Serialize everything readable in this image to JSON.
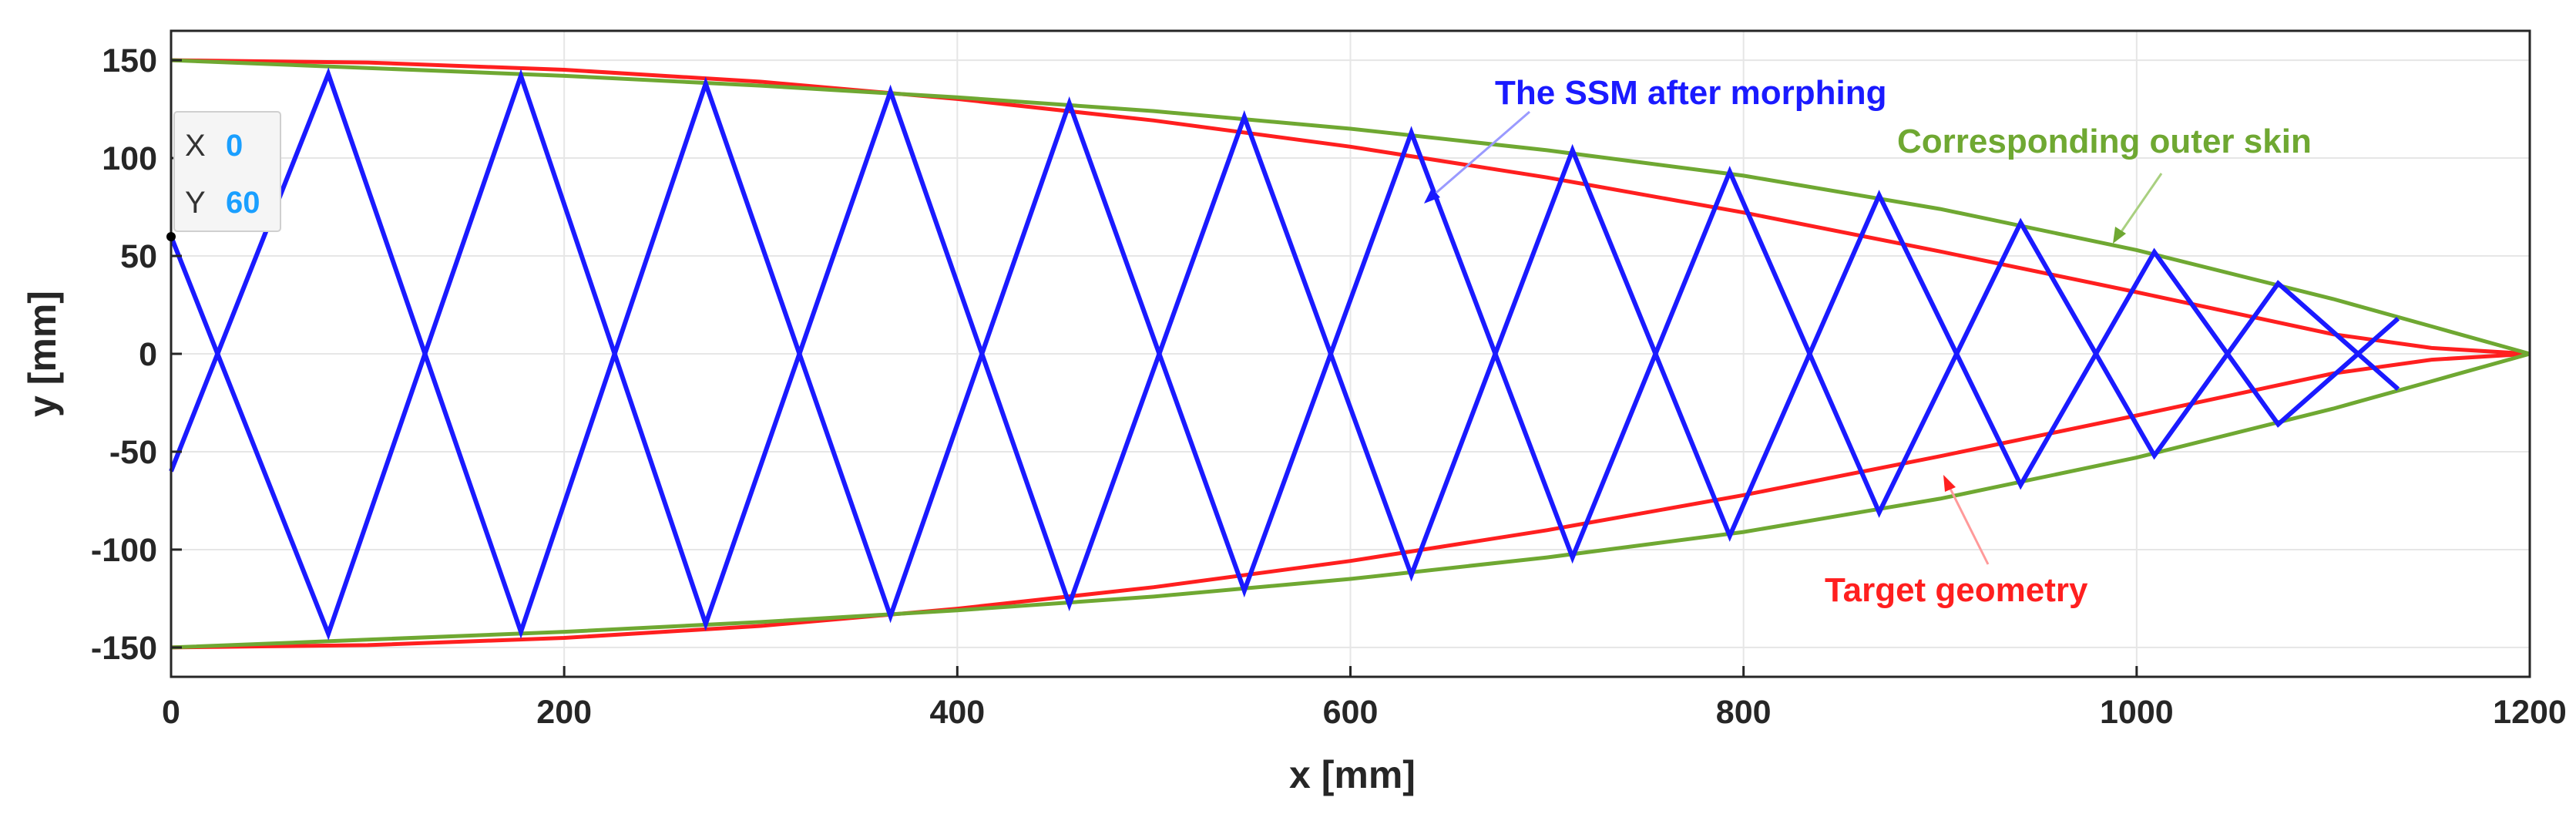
{
  "chart_data": {
    "type": "line",
    "title": "",
    "xlabel": "x [mm]",
    "ylabel": "y [mm]",
    "xlim": [
      0,
      1200
    ],
    "ylim": [
      -165,
      165
    ],
    "xticks": [
      0,
      200,
      400,
      600,
      800,
      1000,
      1200
    ],
    "yticks": [
      -150,
      -100,
      -50,
      0,
      50,
      100,
      150
    ],
    "grid": true,
    "series": [
      {
        "name": "Target geometry",
        "color": "#ff1f1f",
        "x": [
          0,
          100,
          200,
          300,
          400,
          500,
          600,
          700,
          800,
          900,
          1000,
          1100,
          1150,
          1200
        ],
        "y_upper": [
          150,
          148.8,
          145.1,
          139,
          130.2,
          119.2,
          105.8,
          90.1,
          72.2,
          52.3,
          31.5,
          10,
          3,
          0
        ],
        "y_lower": [
          -150,
          -148.8,
          -145.1,
          -139,
          -130.2,
          -119.2,
          -105.8,
          -90.1,
          -72.2,
          -52.3,
          -31.5,
          -10,
          -3,
          0
        ]
      },
      {
        "name": "Corresponding outer skin",
        "color": "#6fa832",
        "x": [
          0,
          100,
          200,
          300,
          400,
          500,
          600,
          700,
          800,
          900,
          1000,
          1100,
          1150,
          1200
        ],
        "y_upper": [
          150,
          146,
          142,
          137,
          131,
          124,
          115,
          104,
          91,
          74,
          53,
          28,
          14,
          0
        ],
        "y_lower": [
          -150,
          -146,
          -142,
          -137,
          -131,
          -124,
          -115,
          -104,
          -91,
          -74,
          -53,
          -28,
          -14,
          0
        ]
      },
      {
        "name": "The SSM after morphing",
        "color": "#1a1aff",
        "vertex_x": [
          0,
          80,
          178,
          272,
          366,
          457,
          546,
          631,
          713,
          793,
          869,
          941,
          1009,
          1072,
          1133
        ],
        "vertex_y": [
          60,
          143,
          142,
          138,
          134,
          128,
          121,
          113,
          104,
          93,
          81,
          67,
          52,
          36,
          18
        ]
      }
    ],
    "annotations": [
      {
        "text": "The SSM after morphing",
        "color": "#1a1aff",
        "target": [
          650,
          78
        ]
      },
      {
        "text": "Corresponding outer skin",
        "color": "#6fa832",
        "target": [
          995,
          55
        ]
      },
      {
        "text": "Target geometry",
        "color": "#ff1f1f",
        "target": [
          917,
          -62
        ]
      }
    ],
    "datatip": {
      "x_label": "X",
      "x_value": "0",
      "y_label": "Y",
      "y_value": "60",
      "value_color": "#1a9fff"
    }
  }
}
